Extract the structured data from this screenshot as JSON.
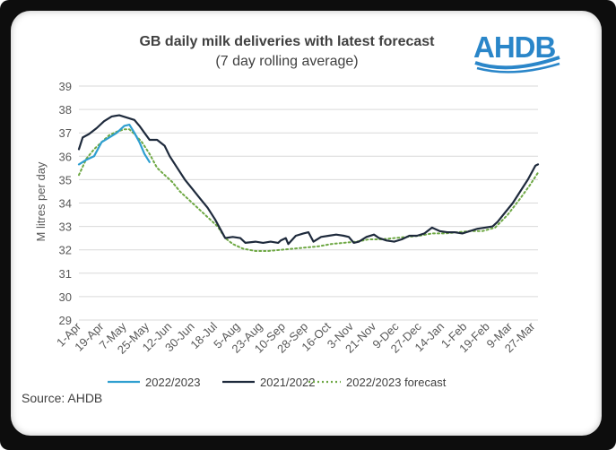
{
  "chart_data": {
    "type": "line",
    "title": "GB daily milk deliveries with latest forecast",
    "subtitle": "(7 day rolling average)",
    "ylabel": "M litres per day",
    "xlabel": "",
    "ylim": [
      29,
      39
    ],
    "yticks": [
      29,
      30,
      31,
      32,
      33,
      34,
      35,
      36,
      37,
      38,
      39
    ],
    "day_range": [
      0,
      364
    ],
    "categories": [
      "1-Apr",
      "19-Apr",
      "7-May",
      "25-May",
      "12-Jun",
      "30-Jun",
      "18-Jul",
      "5-Aug",
      "23-Aug",
      "10-Sep",
      "28-Sep",
      "16-Oct",
      "3-Nov",
      "21-Nov",
      "9-Dec",
      "27-Dec",
      "14-Jan",
      "1-Feb",
      "19-Feb",
      "9-Mar",
      "27-Mar"
    ],
    "category_days": [
      0,
      18,
      36,
      54,
      72,
      90,
      108,
      126,
      144,
      162,
      180,
      198,
      216,
      234,
      252,
      270,
      288,
      306,
      324,
      342,
      360
    ],
    "grid": "horizontal",
    "legend_position": "bottom",
    "series": [
      {
        "name": "2022/2023",
        "color": "#2f9fd0",
        "style": "solid",
        "points": [
          [
            0,
            35.65
          ],
          [
            6,
            35.85
          ],
          [
            12,
            36.0
          ],
          [
            18,
            36.6
          ],
          [
            24,
            36.8
          ],
          [
            30,
            37.0
          ],
          [
            36,
            37.3
          ],
          [
            40,
            37.35
          ],
          [
            44,
            37.0
          ],
          [
            48,
            36.6
          ],
          [
            52,
            36.1
          ],
          [
            56,
            35.75
          ]
        ]
      },
      {
        "name": "2021/2022",
        "color": "#1e2a3c",
        "style": "solid",
        "points": [
          [
            0,
            36.3
          ],
          [
            3,
            36.8
          ],
          [
            8,
            36.95
          ],
          [
            14,
            37.2
          ],
          [
            20,
            37.5
          ],
          [
            26,
            37.7
          ],
          [
            32,
            37.75
          ],
          [
            38,
            37.65
          ],
          [
            44,
            37.55
          ],
          [
            48,
            37.3
          ],
          [
            52,
            37.0
          ],
          [
            56,
            36.7
          ],
          [
            62,
            36.7
          ],
          [
            68,
            36.45
          ],
          [
            72,
            36.0
          ],
          [
            78,
            35.5
          ],
          [
            84,
            35.0
          ],
          [
            90,
            34.6
          ],
          [
            96,
            34.2
          ],
          [
            102,
            33.8
          ],
          [
            108,
            33.3
          ],
          [
            112,
            32.9
          ],
          [
            116,
            32.5
          ],
          [
            122,
            32.55
          ],
          [
            128,
            32.5
          ],
          [
            132,
            32.3
          ],
          [
            140,
            32.35
          ],
          [
            146,
            32.3
          ],
          [
            152,
            32.35
          ],
          [
            158,
            32.3
          ],
          [
            160,
            32.4
          ],
          [
            164,
            32.5
          ],
          [
            166,
            32.25
          ],
          [
            172,
            32.6
          ],
          [
            178,
            32.7
          ],
          [
            182,
            32.75
          ],
          [
            186,
            32.35
          ],
          [
            192,
            32.55
          ],
          [
            198,
            32.6
          ],
          [
            204,
            32.65
          ],
          [
            210,
            32.6
          ],
          [
            214,
            32.55
          ],
          [
            218,
            32.3
          ],
          [
            222,
            32.35
          ],
          [
            228,
            32.55
          ],
          [
            234,
            32.65
          ],
          [
            238,
            32.5
          ],
          [
            244,
            32.4
          ],
          [
            250,
            32.35
          ],
          [
            256,
            32.45
          ],
          [
            262,
            32.6
          ],
          [
            268,
            32.6
          ],
          [
            274,
            32.7
          ],
          [
            280,
            32.95
          ],
          [
            286,
            32.8
          ],
          [
            292,
            32.75
          ],
          [
            298,
            32.75
          ],
          [
            304,
            32.7
          ],
          [
            310,
            32.8
          ],
          [
            316,
            32.9
          ],
          [
            322,
            32.95
          ],
          [
            328,
            33.0
          ],
          [
            332,
            33.2
          ],
          [
            338,
            33.6
          ],
          [
            344,
            34.0
          ],
          [
            350,
            34.5
          ],
          [
            356,
            35.0
          ],
          [
            362,
            35.6
          ],
          [
            364,
            35.65
          ]
        ]
      },
      {
        "name": "2022/2023 forecast",
        "color": "#6ea844",
        "style": "dotted",
        "points": [
          [
            0,
            35.2
          ],
          [
            6,
            35.9
          ],
          [
            12,
            36.3
          ],
          [
            18,
            36.6
          ],
          [
            24,
            36.9
          ],
          [
            30,
            37.05
          ],
          [
            36,
            37.15
          ],
          [
            40,
            37.15
          ],
          [
            44,
            36.95
          ],
          [
            50,
            36.6
          ],
          [
            56,
            36.1
          ],
          [
            62,
            35.5
          ],
          [
            68,
            35.2
          ],
          [
            74,
            34.9
          ],
          [
            80,
            34.5
          ],
          [
            86,
            34.2
          ],
          [
            92,
            33.9
          ],
          [
            98,
            33.6
          ],
          [
            104,
            33.3
          ],
          [
            110,
            33.0
          ],
          [
            116,
            32.5
          ],
          [
            122,
            32.25
          ],
          [
            130,
            32.05
          ],
          [
            140,
            31.95
          ],
          [
            150,
            31.95
          ],
          [
            160,
            32.0
          ],
          [
            170,
            32.05
          ],
          [
            180,
            32.1
          ],
          [
            190,
            32.15
          ],
          [
            200,
            32.25
          ],
          [
            210,
            32.3
          ],
          [
            220,
            32.35
          ],
          [
            230,
            32.45
          ],
          [
            240,
            32.45
          ],
          [
            250,
            32.5
          ],
          [
            260,
            32.55
          ],
          [
            270,
            32.6
          ],
          [
            280,
            32.7
          ],
          [
            290,
            32.7
          ],
          [
            300,
            32.75
          ],
          [
            310,
            32.8
          ],
          [
            320,
            32.8
          ],
          [
            330,
            32.95
          ],
          [
            340,
            33.5
          ],
          [
            350,
            34.2
          ],
          [
            358,
            34.8
          ],
          [
            364,
            35.3
          ]
        ]
      }
    ]
  },
  "logo": {
    "text": "AHDB",
    "color": "#2a86c9"
  },
  "source": "Source: AHDB"
}
